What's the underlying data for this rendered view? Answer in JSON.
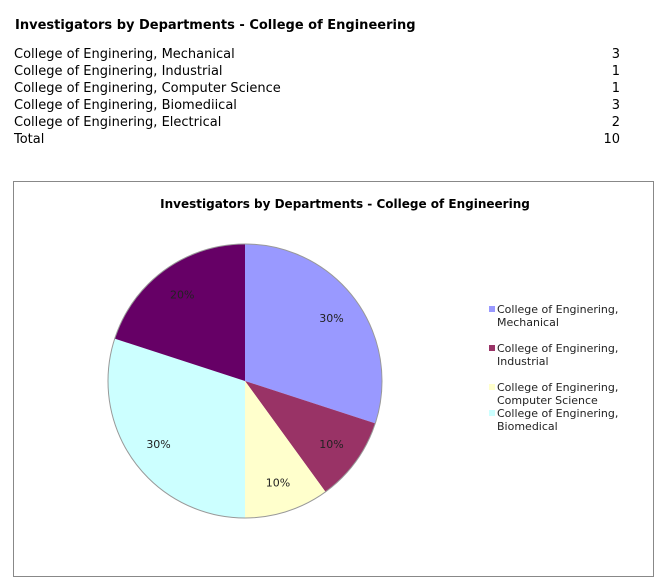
{
  "title": "Investigators by Departments - College of Engineering",
  "rows": [
    {
      "label": "College of Enginering, Mechanical",
      "value": "3"
    },
    {
      "label": "College of Enginering, Industrial",
      "value": "1"
    },
    {
      "label": "College of Enginering, Computer Science",
      "value": "1"
    },
    {
      "label": "College of Enginering, Biomediical",
      "value": "3"
    },
    {
      "label": "College of Enginering, Electrical",
      "value": "2"
    },
    {
      "label": "Total",
      "value": "10"
    }
  ],
  "chart_data": {
    "type": "pie",
    "title": "Investigators by Departments - College of Engineering",
    "categories": [
      "College of Enginering, Mechanical",
      "College of Enginering, Industrial",
      "College of Enginering, Computer Science",
      "College of Enginering, Biomediical",
      "College of Enginering, Electrical"
    ],
    "values": [
      3,
      1,
      1,
      3,
      2
    ],
    "labels": [
      "30%",
      "10%",
      "10%",
      "30%",
      "20%"
    ],
    "colors": [
      "#9999FF",
      "#993366",
      "#FFFFCC",
      "#CCFFFF",
      "#660066"
    ],
    "legend": [
      {
        "label": "College of Enginering, Mechanical",
        "color": "#9999FF"
      },
      {
        "label": "College of Enginering, Industrial",
        "color": "#993366"
      },
      {
        "label": "College of Enginering, Computer Science",
        "color": "#FFFFCC"
      },
      {
        "label": "College of Enginering, Biomedical",
        "color": "#CCFFFF"
      }
    ],
    "legend_position": "right"
  }
}
